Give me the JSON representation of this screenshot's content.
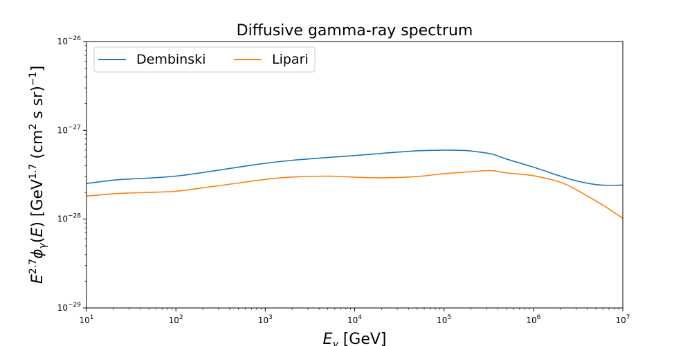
{
  "chart_data": {
    "type": "line",
    "title": "Diffusive gamma-ray spectrum",
    "xlabel": "E_γ [GeV]",
    "ylabel": "E^{2.7} φ_γ(E) [GeV^{1.7} (cm² s sr)^{−1}]",
    "xscale": "log",
    "yscale": "log",
    "xlim": [
      10,
      10000000
    ],
    "ylim": [
      1e-29,
      1e-26
    ],
    "x_ticks": [
      {
        "base": "10",
        "exp": "1"
      },
      {
        "base": "10",
        "exp": "2"
      },
      {
        "base": "10",
        "exp": "3"
      },
      {
        "base": "10",
        "exp": "4"
      },
      {
        "base": "10",
        "exp": "5"
      },
      {
        "base": "10",
        "exp": "6"
      },
      {
        "base": "10",
        "exp": "7"
      }
    ],
    "y_ticks": [
      {
        "base": "10",
        "exp": "−29"
      },
      {
        "base": "10",
        "exp": "−28"
      },
      {
        "base": "10",
        "exp": "−27"
      },
      {
        "base": "10",
        "exp": "−26"
      }
    ],
    "grid": false,
    "legend_placement": "top-left",
    "legend_columns": 2,
    "series": [
      {
        "name": "Dembinski",
        "color": "#1f77b4",
        "x": [
          10,
          20,
          30,
          50,
          100,
          200,
          500,
          1000,
          2000,
          5000,
          10000,
          20000,
          50000,
          100000,
          150000,
          200000,
          340000,
          500000,
          1000000,
          2000000,
          3000000,
          5000000,
          7000000,
          10000000
        ],
        "y": [
          2.52e-28,
          2.75e-28,
          2.83e-28,
          2.9e-28,
          3.05e-28,
          3.35e-28,
          3.85e-28,
          4.25e-28,
          4.6e-28,
          4.95e-28,
          5.2e-28,
          5.5e-28,
          5.88e-28,
          5.98e-28,
          5.95e-28,
          5.85e-28,
          5.42e-28,
          4.75e-28,
          3.85e-28,
          3.05e-28,
          2.7e-28,
          2.45e-28,
          2.4e-28,
          2.42e-28
        ]
      },
      {
        "name": "Lipari",
        "color": "#ff7f0e",
        "x": [
          10,
          20,
          30,
          50,
          100,
          200,
          500,
          1000,
          2000,
          5000,
          10000,
          20000,
          50000,
          100000,
          150000,
          200000,
          340000,
          500000,
          1000000,
          2000000,
          3000000,
          5000000,
          7000000,
          10000000
        ],
        "y": [
          1.82e-28,
          1.93e-28,
          1.97e-28,
          2e-28,
          2.06e-28,
          2.25e-28,
          2.55e-28,
          2.8e-28,
          2.98e-28,
          3.05e-28,
          2.97e-28,
          2.92e-28,
          3.02e-28,
          3.25e-28,
          3.35e-28,
          3.42e-28,
          3.52e-28,
          3.32e-28,
          3.08e-28,
          2.6e-28,
          2.15e-28,
          1.6e-28,
          1.3e-28,
          1.02e-28
        ]
      }
    ]
  }
}
